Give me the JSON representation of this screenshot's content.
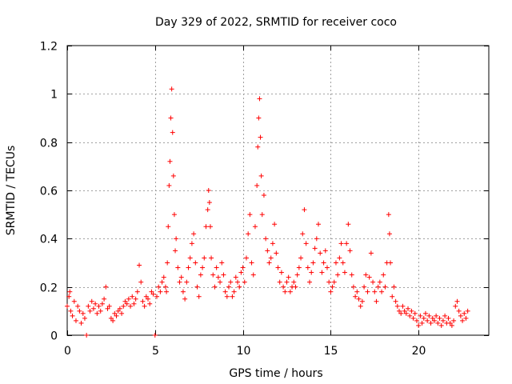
{
  "chart_data": {
    "type": "scatter",
    "title": "Day 329 of 2022, SRMTID for receiver coco",
    "xlabel": "GPS time / hours",
    "ylabel": "SRMTID / TECUs",
    "xlim": [
      0,
      24
    ],
    "ylim": [
      0,
      1.2
    ],
    "xticks": [
      0,
      5,
      10,
      15,
      20
    ],
    "xtick_labels": [
      "0",
      "5",
      "10",
      "15",
      "20"
    ],
    "yticks": [
      0,
      0.2,
      0.4,
      0.6,
      0.8,
      1.0,
      1.2
    ],
    "ytick_labels": [
      "0",
      "0.2",
      "0.4",
      "0.6",
      "0.8",
      "1",
      "1.2"
    ],
    "grid": true,
    "marker": "+",
    "color": "#ff0000",
    "series": [
      {
        "name": "SRMTID",
        "points": [
          [
            0.0,
            0.12
          ],
          [
            0.1,
            0.16
          ],
          [
            0.15,
            0.18
          ],
          [
            0.2,
            0.1
          ],
          [
            0.3,
            0.08
          ],
          [
            0.4,
            0.14
          ],
          [
            0.5,
            0.06
          ],
          [
            0.6,
            0.12
          ],
          [
            0.7,
            0.1
          ],
          [
            0.8,
            0.05
          ],
          [
            0.9,
            0.09
          ],
          [
            1.0,
            0.07
          ],
          [
            1.1,
            0.0
          ],
          [
            1.2,
            0.12
          ],
          [
            1.3,
            0.1
          ],
          [
            1.4,
            0.14
          ],
          [
            1.5,
            0.11
          ],
          [
            1.6,
            0.13
          ],
          [
            1.7,
            0.09
          ],
          [
            1.8,
            0.12
          ],
          [
            1.9,
            0.1
          ],
          [
            2.0,
            0.13
          ],
          [
            2.1,
            0.15
          ],
          [
            2.2,
            0.2
          ],
          [
            2.3,
            0.11
          ],
          [
            2.4,
            0.12
          ],
          [
            2.5,
            0.07
          ],
          [
            2.6,
            0.06
          ],
          [
            2.7,
            0.09
          ],
          [
            2.8,
            0.08
          ],
          [
            2.9,
            0.1
          ],
          [
            3.0,
            0.11
          ],
          [
            3.1,
            0.09
          ],
          [
            3.2,
            0.12
          ],
          [
            3.3,
            0.14
          ],
          [
            3.4,
            0.13
          ],
          [
            3.5,
            0.15
          ],
          [
            3.6,
            0.12
          ],
          [
            3.7,
            0.16
          ],
          [
            3.8,
            0.13
          ],
          [
            3.9,
            0.15
          ],
          [
            4.0,
            0.18
          ],
          [
            4.1,
            0.29
          ],
          [
            4.2,
            0.22
          ],
          [
            4.3,
            0.14
          ],
          [
            4.4,
            0.12
          ],
          [
            4.5,
            0.16
          ],
          [
            4.6,
            0.15
          ],
          [
            4.7,
            0.13
          ],
          [
            4.8,
            0.18
          ],
          [
            4.9,
            0.17
          ],
          [
            5.0,
            0.0
          ],
          [
            5.1,
            0.16
          ],
          [
            5.2,
            0.2
          ],
          [
            5.3,
            0.18
          ],
          [
            5.4,
            0.22
          ],
          [
            5.5,
            0.24
          ],
          [
            5.6,
            0.2
          ],
          [
            5.65,
            0.18
          ],
          [
            5.7,
            0.3
          ],
          [
            5.75,
            0.45
          ],
          [
            5.8,
            0.62
          ],
          [
            5.85,
            0.72
          ],
          [
            5.9,
            0.9
          ],
          [
            5.95,
            1.02
          ],
          [
            6.0,
            0.84
          ],
          [
            6.05,
            0.66
          ],
          [
            6.1,
            0.5
          ],
          [
            6.15,
            0.35
          ],
          [
            6.2,
            0.4
          ],
          [
            6.3,
            0.28
          ],
          [
            6.4,
            0.22
          ],
          [
            6.5,
            0.24
          ],
          [
            6.6,
            0.18
          ],
          [
            6.7,
            0.15
          ],
          [
            6.8,
            0.22
          ],
          [
            6.9,
            0.28
          ],
          [
            7.0,
            0.32
          ],
          [
            7.1,
            0.38
          ],
          [
            7.2,
            0.42
          ],
          [
            7.3,
            0.3
          ],
          [
            7.4,
            0.2
          ],
          [
            7.5,
            0.16
          ],
          [
            7.6,
            0.25
          ],
          [
            7.7,
            0.28
          ],
          [
            7.8,
            0.32
          ],
          [
            7.9,
            0.45
          ],
          [
            8.0,
            0.52
          ],
          [
            8.05,
            0.6
          ],
          [
            8.1,
            0.55
          ],
          [
            8.15,
            0.45
          ],
          [
            8.2,
            0.32
          ],
          [
            8.3,
            0.25
          ],
          [
            8.4,
            0.2
          ],
          [
            8.5,
            0.28
          ],
          [
            8.6,
            0.24
          ],
          [
            8.7,
            0.22
          ],
          [
            8.8,
            0.3
          ],
          [
            8.9,
            0.25
          ],
          [
            9.0,
            0.18
          ],
          [
            9.1,
            0.16
          ],
          [
            9.2,
            0.2
          ],
          [
            9.3,
            0.22
          ],
          [
            9.4,
            0.16
          ],
          [
            9.5,
            0.18
          ],
          [
            9.6,
            0.24
          ],
          [
            9.7,
            0.22
          ],
          [
            9.8,
            0.2
          ],
          [
            9.9,
            0.26
          ],
          [
            10.0,
            0.28
          ],
          [
            10.1,
            0.22
          ],
          [
            10.2,
            0.32
          ],
          [
            10.3,
            0.42
          ],
          [
            10.4,
            0.5
          ],
          [
            10.5,
            0.3
          ],
          [
            10.6,
            0.25
          ],
          [
            10.7,
            0.45
          ],
          [
            10.8,
            0.62
          ],
          [
            10.85,
            0.78
          ],
          [
            10.9,
            0.9
          ],
          [
            10.95,
            0.98
          ],
          [
            11.0,
            0.82
          ],
          [
            11.05,
            0.66
          ],
          [
            11.1,
            0.5
          ],
          [
            11.2,
            0.58
          ],
          [
            11.3,
            0.4
          ],
          [
            11.4,
            0.35
          ],
          [
            11.5,
            0.3
          ],
          [
            11.6,
            0.32
          ],
          [
            11.7,
            0.38
          ],
          [
            11.8,
            0.46
          ],
          [
            11.9,
            0.34
          ],
          [
            12.0,
            0.28
          ],
          [
            12.1,
            0.22
          ],
          [
            12.2,
            0.26
          ],
          [
            12.3,
            0.2
          ],
          [
            12.4,
            0.18
          ],
          [
            12.5,
            0.22
          ],
          [
            12.6,
            0.24
          ],
          [
            12.7,
            0.18
          ],
          [
            12.8,
            0.2
          ],
          [
            12.9,
            0.22
          ],
          [
            13.0,
            0.2
          ],
          [
            13.1,
            0.25
          ],
          [
            13.2,
            0.28
          ],
          [
            13.3,
            0.32
          ],
          [
            13.4,
            0.42
          ],
          [
            13.5,
            0.52
          ],
          [
            13.6,
            0.38
          ],
          [
            13.7,
            0.28
          ],
          [
            13.8,
            0.22
          ],
          [
            13.9,
            0.26
          ],
          [
            14.0,
            0.3
          ],
          [
            14.1,
            0.36
          ],
          [
            14.2,
            0.4
          ],
          [
            14.3,
            0.46
          ],
          [
            14.4,
            0.34
          ],
          [
            14.5,
            0.26
          ],
          [
            14.6,
            0.3
          ],
          [
            14.7,
            0.35
          ],
          [
            14.8,
            0.28
          ],
          [
            14.9,
            0.22
          ],
          [
            15.0,
            0.18
          ],
          [
            15.1,
            0.2
          ],
          [
            15.2,
            0.22
          ],
          [
            15.3,
            0.3
          ],
          [
            15.4,
            0.25
          ],
          [
            15.5,
            0.32
          ],
          [
            15.6,
            0.38
          ],
          [
            15.7,
            0.3
          ],
          [
            15.8,
            0.26
          ],
          [
            15.9,
            0.38
          ],
          [
            16.0,
            0.46
          ],
          [
            16.1,
            0.35
          ],
          [
            16.2,
            0.25
          ],
          [
            16.3,
            0.2
          ],
          [
            16.4,
            0.16
          ],
          [
            16.5,
            0.18
          ],
          [
            16.6,
            0.15
          ],
          [
            16.7,
            0.12
          ],
          [
            16.8,
            0.14
          ],
          [
            16.9,
            0.2
          ],
          [
            17.0,
            0.25
          ],
          [
            17.1,
            0.18
          ],
          [
            17.2,
            0.24
          ],
          [
            17.3,
            0.34
          ],
          [
            17.4,
            0.22
          ],
          [
            17.5,
            0.18
          ],
          [
            17.6,
            0.14
          ],
          [
            17.7,
            0.2
          ],
          [
            17.8,
            0.22
          ],
          [
            17.9,
            0.18
          ],
          [
            18.0,
            0.25
          ],
          [
            18.1,
            0.2
          ],
          [
            18.2,
            0.3
          ],
          [
            18.3,
            0.5
          ],
          [
            18.35,
            0.42
          ],
          [
            18.4,
            0.3
          ],
          [
            18.5,
            0.16
          ],
          [
            18.6,
            0.2
          ],
          [
            18.7,
            0.14
          ],
          [
            18.8,
            0.12
          ],
          [
            18.9,
            0.1
          ],
          [
            19.0,
            0.09
          ],
          [
            19.1,
            0.12
          ],
          [
            19.2,
            0.1
          ],
          [
            19.3,
            0.09
          ],
          [
            19.4,
            0.11
          ],
          [
            19.5,
            0.08
          ],
          [
            19.6,
            0.1
          ],
          [
            19.7,
            0.07
          ],
          [
            19.8,
            0.09
          ],
          [
            19.9,
            0.06
          ],
          [
            20.0,
            0.04
          ],
          [
            20.1,
            0.08
          ],
          [
            20.2,
            0.05
          ],
          [
            20.3,
            0.07
          ],
          [
            20.4,
            0.09
          ],
          [
            20.5,
            0.06
          ],
          [
            20.6,
            0.08
          ],
          [
            20.7,
            0.05
          ],
          [
            20.8,
            0.07
          ],
          [
            20.9,
            0.06
          ],
          [
            21.0,
            0.08
          ],
          [
            21.1,
            0.05
          ],
          [
            21.2,
            0.07
          ],
          [
            21.3,
            0.04
          ],
          [
            21.4,
            0.06
          ],
          [
            21.5,
            0.08
          ],
          [
            21.6,
            0.05
          ],
          [
            21.7,
            0.07
          ],
          [
            21.8,
            0.05
          ],
          [
            21.9,
            0.04
          ],
          [
            22.0,
            0.06
          ],
          [
            22.1,
            0.12
          ],
          [
            22.2,
            0.14
          ],
          [
            22.3,
            0.1
          ],
          [
            22.4,
            0.08
          ],
          [
            22.5,
            0.06
          ],
          [
            22.6,
            0.09
          ],
          [
            22.7,
            0.07
          ],
          [
            22.8,
            0.1
          ]
        ]
      }
    ]
  }
}
